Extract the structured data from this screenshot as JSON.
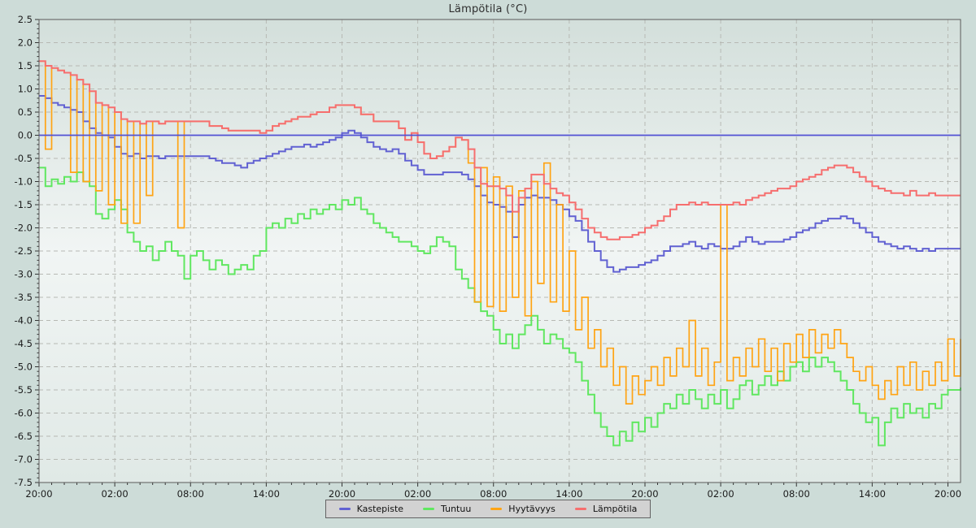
{
  "chart_data": {
    "type": "line",
    "title": "Lämpötila (°C)",
    "legend_position": "bottom",
    "grid": {
      "dashed": true,
      "color": "#b7b9b4"
    },
    "x_axis": {
      "tick_labels": [
        "20:00",
        "02:00",
        "08:00",
        "14:00",
        "20:00",
        "02:00",
        "08:00",
        "14:00",
        "20:00",
        "02:00",
        "08:00",
        "14:00",
        "20:00"
      ],
      "tick_interval_hours": 6,
      "minor_tick_interval_hours": 1,
      "span_hours": 73
    },
    "y_axis": {
      "tick_labels": [
        "2.5",
        "2.0",
        "1.5",
        "1.0",
        "0.5",
        "0.0",
        "-0.5",
        "-1.0",
        "-1.5",
        "-2.0",
        "-2.5",
        "-3.0",
        "-3.5",
        "-4.0",
        "-4.5",
        "-5.0",
        "-5.5",
        "-6.0",
        "-6.5",
        "-7.0",
        "-7.5"
      ],
      "max": 2.5,
      "min": -7.5,
      "tick_step": 0.5,
      "minor_tick_step": 0.1
    },
    "zero_line": {
      "value": 0.0,
      "color": "#5151d4"
    },
    "sample_interval_hours": 0.5,
    "series": [
      {
        "name": "Kastepiste",
        "color": "#6161d2",
        "values": [
          0.85,
          0.8,
          0.7,
          0.65,
          0.6,
          0.55,
          0.5,
          0.3,
          0.15,
          0.05,
          0.0,
          -0.05,
          -0.25,
          -0.4,
          -0.45,
          -0.4,
          -0.5,
          -0.45,
          -0.45,
          -0.5,
          -0.45,
          -0.45,
          -0.45,
          -0.45,
          -0.45,
          -0.45,
          -0.45,
          -0.5,
          -0.55,
          -0.6,
          -0.6,
          -0.65,
          -0.7,
          -0.6,
          -0.55,
          -0.5,
          -0.45,
          -0.4,
          -0.35,
          -0.3,
          -0.25,
          -0.25,
          -0.2,
          -0.25,
          -0.2,
          -0.15,
          -0.1,
          -0.05,
          0.05,
          0.1,
          0.05,
          -0.05,
          -0.15,
          -0.25,
          -0.3,
          -0.35,
          -0.3,
          -0.4,
          -0.55,
          -0.65,
          -0.75,
          -0.85,
          -0.85,
          -0.85,
          -0.8,
          -0.8,
          -0.8,
          -0.85,
          -0.95,
          -1.1,
          -1.3,
          -1.45,
          -1.5,
          -1.55,
          -1.65,
          -2.2,
          -1.5,
          -1.35,
          -1.3,
          -1.35,
          -1.35,
          -1.4,
          -1.5,
          -1.6,
          -1.75,
          -1.85,
          -2.05,
          -2.3,
          -2.5,
          -2.7,
          -2.85,
          -2.95,
          -2.9,
          -2.85,
          -2.85,
          -2.8,
          -2.75,
          -2.7,
          -2.6,
          -2.5,
          -2.4,
          -2.4,
          -2.35,
          -2.3,
          -2.4,
          -2.45,
          -2.35,
          -2.4,
          -2.45,
          -2.45,
          -2.4,
          -2.3,
          -2.2,
          -2.3,
          -2.35,
          -2.3,
          -2.3,
          -2.3,
          -2.25,
          -2.2,
          -2.1,
          -2.05,
          -2.0,
          -1.9,
          -1.85,
          -1.8,
          -1.8,
          -1.75,
          -1.8,
          -1.9,
          -2.0,
          -2.1,
          -2.2,
          -2.3,
          -2.35,
          -2.4,
          -2.45,
          -2.4,
          -2.45,
          -2.5,
          -2.45,
          -2.5,
          -2.45,
          -2.45,
          -2.45,
          -2.45,
          -2.45
        ]
      },
      {
        "name": "Tuntuu",
        "color": "#60e760",
        "values": [
          -0.7,
          -1.1,
          -0.95,
          -1.05,
          -0.9,
          -1.0,
          -0.8,
          -1.0,
          -1.1,
          -1.7,
          -1.8,
          -1.6,
          -1.4,
          -1.6,
          -2.1,
          -2.3,
          -2.5,
          -2.4,
          -2.7,
          -2.5,
          -2.3,
          -2.5,
          -2.6,
          -3.1,
          -2.6,
          -2.5,
          -2.7,
          -2.9,
          -2.7,
          -2.8,
          -3.0,
          -2.9,
          -2.8,
          -2.9,
          -2.6,
          -2.5,
          -2.0,
          -1.9,
          -2.0,
          -1.8,
          -1.9,
          -1.7,
          -1.8,
          -1.6,
          -1.7,
          -1.6,
          -1.5,
          -1.6,
          -1.4,
          -1.5,
          -1.35,
          -1.6,
          -1.7,
          -1.9,
          -2.0,
          -2.1,
          -2.2,
          -2.3,
          -2.3,
          -2.4,
          -2.5,
          -2.55,
          -2.4,
          -2.2,
          -2.3,
          -2.4,
          -2.9,
          -3.1,
          -3.3,
          -3.6,
          -3.8,
          -3.9,
          -4.2,
          -4.5,
          -4.3,
          -4.6,
          -4.3,
          -4.1,
          -3.9,
          -4.2,
          -4.5,
          -4.3,
          -4.4,
          -4.6,
          -4.7,
          -4.9,
          -5.3,
          -5.6,
          -6.0,
          -6.3,
          -6.5,
          -6.7,
          -6.4,
          -6.6,
          -6.2,
          -6.4,
          -6.1,
          -6.3,
          -6.0,
          -5.8,
          -5.9,
          -5.6,
          -5.8,
          -5.5,
          -5.7,
          -5.9,
          -5.6,
          -5.8,
          -5.5,
          -5.9,
          -5.7,
          -5.4,
          -5.3,
          -5.6,
          -5.4,
          -5.2,
          -5.4,
          -5.1,
          -5.3,
          -5.0,
          -4.9,
          -5.1,
          -4.8,
          -5.0,
          -4.8,
          -4.9,
          -5.1,
          -5.3,
          -5.5,
          -5.8,
          -6.0,
          -6.2,
          -6.1,
          -6.7,
          -6.2,
          -5.9,
          -6.1,
          -5.8,
          -6.0,
          -5.9,
          -6.1,
          -5.8,
          -5.9,
          -5.6,
          -5.5,
          -5.5,
          -5.45
        ]
      },
      {
        "name": "Hyytävyys",
        "color": "#ffa414",
        "values": [
          1.6,
          -0.3,
          1.45,
          1.4,
          1.35,
          -0.8,
          1.2,
          -1.0,
          0.95,
          -1.2,
          0.65,
          -1.5,
          0.5,
          -1.9,
          0.3,
          -1.9,
          0.25,
          -1.3,
          0.3,
          0.25,
          0.3,
          0.3,
          -2.0,
          0.3,
          0.3,
          0.3,
          0.3,
          0.2,
          0.2,
          0.15,
          0.1,
          0.1,
          0.1,
          0.1,
          0.1,
          0.05,
          0.1,
          0.2,
          0.25,
          0.3,
          0.35,
          0.4,
          0.4,
          0.45,
          0.5,
          0.5,
          0.6,
          0.65,
          0.65,
          0.65,
          0.6,
          0.45,
          0.45,
          0.3,
          0.3,
          0.3,
          0.3,
          0.15,
          -0.1,
          0.05,
          -0.15,
          -0.4,
          -0.5,
          -0.45,
          -0.35,
          -0.25,
          -0.05,
          -0.1,
          -0.6,
          -3.6,
          -0.7,
          -3.7,
          -0.9,
          -3.8,
          -1.1,
          -3.5,
          -1.2,
          -3.9,
          -1.0,
          -3.2,
          -0.6,
          -3.6,
          -1.5,
          -3.8,
          -2.5,
          -4.2,
          -3.5,
          -4.6,
          -4.2,
          -5.0,
          -4.6,
          -5.4,
          -5.0,
          -5.8,
          -5.2,
          -5.6,
          -5.3,
          -5.0,
          -5.4,
          -4.8,
          -5.2,
          -4.6,
          -5.0,
          -4.0,
          -5.2,
          -4.6,
          -5.4,
          -4.9,
          -1.5,
          -5.3,
          -4.8,
          -5.2,
          -4.6,
          -5.0,
          -4.4,
          -5.1,
          -4.6,
          -5.3,
          -4.5,
          -4.9,
          -4.3,
          -4.8,
          -4.2,
          -4.7,
          -4.3,
          -4.6,
          -4.2,
          -4.5,
          -4.8,
          -5.1,
          -5.3,
          -5.0,
          -5.4,
          -5.7,
          -5.3,
          -5.6,
          -5.0,
          -5.4,
          -4.9,
          -5.5,
          -5.1,
          -5.4,
          -4.9,
          -5.3,
          -4.4,
          -5.2,
          -4.4
        ]
      },
      {
        "name": "Lämpötila",
        "color": "#f66e6e",
        "values": [
          1.6,
          1.5,
          1.45,
          1.4,
          1.35,
          1.3,
          1.2,
          1.1,
          0.95,
          0.7,
          0.65,
          0.6,
          0.5,
          0.35,
          0.3,
          0.3,
          0.25,
          0.3,
          0.3,
          0.25,
          0.3,
          0.3,
          0.3,
          0.3,
          0.3,
          0.3,
          0.3,
          0.2,
          0.2,
          0.15,
          0.1,
          0.1,
          0.1,
          0.1,
          0.1,
          0.05,
          0.1,
          0.2,
          0.25,
          0.3,
          0.35,
          0.4,
          0.4,
          0.45,
          0.5,
          0.5,
          0.6,
          0.65,
          0.65,
          0.65,
          0.6,
          0.45,
          0.45,
          0.3,
          0.3,
          0.3,
          0.3,
          0.15,
          -0.1,
          0.05,
          -0.15,
          -0.4,
          -0.5,
          -0.45,
          -0.35,
          -0.25,
          -0.05,
          -0.1,
          -0.3,
          -0.7,
          -1.05,
          -1.1,
          -1.1,
          -1.15,
          -1.3,
          -1.65,
          -1.35,
          -1.15,
          -0.85,
          -0.85,
          -1.05,
          -1.15,
          -1.25,
          -1.3,
          -1.45,
          -1.6,
          -1.8,
          -2.0,
          -2.1,
          -2.2,
          -2.25,
          -2.25,
          -2.2,
          -2.2,
          -2.15,
          -2.1,
          -2.0,
          -1.95,
          -1.85,
          -1.75,
          -1.6,
          -1.5,
          -1.5,
          -1.45,
          -1.5,
          -1.45,
          -1.5,
          -1.5,
          -1.5,
          -1.5,
          -1.45,
          -1.5,
          -1.4,
          -1.35,
          -1.3,
          -1.25,
          -1.2,
          -1.15,
          -1.15,
          -1.1,
          -1.0,
          -0.95,
          -0.9,
          -0.85,
          -0.75,
          -0.7,
          -0.65,
          -0.65,
          -0.7,
          -0.8,
          -0.9,
          -1.0,
          -1.1,
          -1.15,
          -1.2,
          -1.25,
          -1.25,
          -1.3,
          -1.2,
          -1.3,
          -1.3,
          -1.25,
          -1.3,
          -1.3,
          -1.3,
          -1.3,
          -1.3
        ]
      }
    ]
  }
}
